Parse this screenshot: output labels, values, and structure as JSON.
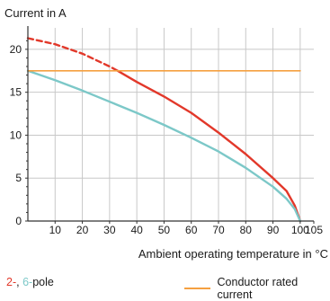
{
  "chart_data": {
    "type": "line",
    "ylabel": "Current in A",
    "xlabel": "Ambient operating temperature in °C",
    "xlim": [
      0,
      105
    ],
    "ylim": [
      0,
      22.5
    ],
    "x_ticks": [
      10,
      20,
      30,
      40,
      50,
      60,
      70,
      80,
      90,
      100,
      105
    ],
    "y_ticks": [
      0,
      5,
      10,
      15,
      20
    ],
    "grid": true,
    "colors": {
      "red": "#e2382a",
      "teal": "#7cc8c8",
      "orange": "#f5a040",
      "grid": "#c8c8c8"
    },
    "series": [
      {
        "key": "red",
        "dashed_part": [
          [
            0,
            21.3
          ],
          [
            10,
            20.6
          ],
          [
            20,
            19.5
          ],
          [
            30,
            18.0
          ],
          [
            33,
            17.5
          ]
        ],
        "solid_part": [
          [
            33,
            17.5
          ],
          [
            40,
            16.2
          ],
          [
            50,
            14.5
          ],
          [
            60,
            12.6
          ],
          [
            70,
            10.3
          ],
          [
            80,
            7.8
          ],
          [
            90,
            5.0
          ],
          [
            95,
            3.5
          ],
          [
            98,
            1.8
          ],
          [
            100,
            0
          ]
        ]
      },
      {
        "key": "teal",
        "solid_part": [
          [
            0,
            17.5
          ],
          [
            10,
            16.4
          ],
          [
            20,
            15.2
          ],
          [
            30,
            13.9
          ],
          [
            40,
            12.6
          ],
          [
            50,
            11.2
          ],
          [
            60,
            9.7
          ],
          [
            70,
            8.1
          ],
          [
            80,
            6.2
          ],
          [
            90,
            4.0
          ],
          [
            95,
            2.6
          ],
          [
            98,
            1.4
          ],
          [
            100,
            0
          ]
        ]
      },
      {
        "key": "rated",
        "solid_part": [
          [
            0,
            17.5
          ],
          [
            100,
            17.5
          ]
        ]
      }
    ]
  },
  "legend": {
    "pole_a": "2-",
    "sep": ",",
    "pole_b": "6-",
    "pole_suffix": "pole",
    "rated": "Conductor rated current"
  }
}
